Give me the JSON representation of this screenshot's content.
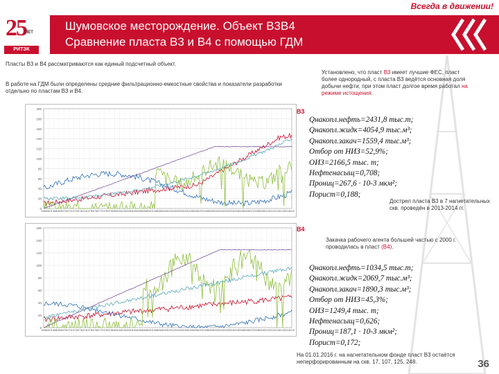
{
  "header": {
    "slogan": "Всегда в движении!",
    "title_line1": "Шумовское месторождение. Объект В3В4",
    "title_line2": "Сравнение пласта В3 и В4 с помощью ГДМ",
    "logo_number": "25",
    "logo_years": "ЛЕТ",
    "logo_brand": "РИТЭК",
    "accent_color": "#c8102e"
  },
  "intro": {
    "line1": "Пласты В3 и В4 рассматриваются как единый подсчетный объект.",
    "line2": "В работе на ГДМ были определены средние фильтрационно-емкостные свойства и показатели разработки отдельно по пластам В3 и В4."
  },
  "note_top": {
    "text_before": "Установлено, что пласт ",
    "highlight1": "В3",
    "text_mid": " имеет лучшие ФЕС, пласт более однородный, с пласта В3 ведётся основная доля добычи нефти, при этом пласт долгое время работал ",
    "highlight2": "на режиме истощения",
    "text_end": "."
  },
  "objects": {
    "b3_label": "В3",
    "b4_label": "В4"
  },
  "b3_stats": [
    "Qнакопл.нефть=2431,8 тыс.т;",
    "Qнакопл.жидк=4054,9 тыс.м³;",
    "Qнакопл.закач=1559,4 тыс.м³;",
    "Отбор от НИЗ=52,9%;",
    "ОИЗ=2166,5 тыс. т;",
    "Нефтенасыщ=0,708;",
    "Прониц=267,6 · 10-3 мкм²;",
    "Порист=0,188;"
  ],
  "note_mid": "Дострел пласта В3 в 7 нагнетательных скв. проведён в 2013-2014 гг.",
  "note_b4": {
    "text_before": "Закачка рабочего агента большей частью с 2000 г. проводилась в пласт ",
    "highlight": "(В4)",
    "text_end": "."
  },
  "b4_stats": [
    "Qнакопл.нефть=1034,5 тыс.т;",
    "Qнакопл.жидк=2069,7 тыс.м³;",
    "Qнакопл.закач=1890,3 тыс.м³;",
    "Отбор от НИЗ=45,3%;",
    "ОИЗ=1249,4 тыс. т;",
    "Нефтенасыщ=0,626;",
    "Прониц=187,1 · 10-3 мкм²;",
    "Порист=0,172;"
  ],
  "note_bottom": "На 01.01.2016 г. на нагнетательном фонде пласт В3 остаётся неперфорированным на скв. 17, 107, 125, 248.",
  "page_number": "36",
  "charts": {
    "years": [
      "1966",
      "1967",
      "1968",
      "1969",
      "1970",
      "1971",
      "1972",
      "1973",
      "1974",
      "1975",
      "1976",
      "1977",
      "1978",
      "1979",
      "1980",
      "1981",
      "1982",
      "1983",
      "1984",
      "1985",
      "1986",
      "1987",
      "1988",
      "1989",
      "1990",
      "1991",
      "1992",
      "1993",
      "1994",
      "1995",
      "1996",
      "1997",
      "1998",
      "1999",
      "2000",
      "2001",
      "2002",
      "2003",
      "2004",
      "2005",
      "2006",
      "2007",
      "2008",
      "2009",
      "2010",
      "2011",
      "2012",
      "2013",
      "2014",
      "2015"
    ],
    "b3_yticks": [
      "200",
      "180",
      "160",
      "140",
      "120",
      "100",
      "80",
      "60",
      "40",
      "20",
      "0"
    ],
    "b4_yticks": [
      "160",
      "140",
      "120",
      "100",
      "80",
      "60",
      "40",
      "20",
      "0"
    ],
    "series_colors": [
      "#c8102e",
      "#2f6fb5",
      "#8fbf3f",
      "#6b3f8f",
      "#5aa9b8"
    ]
  }
}
